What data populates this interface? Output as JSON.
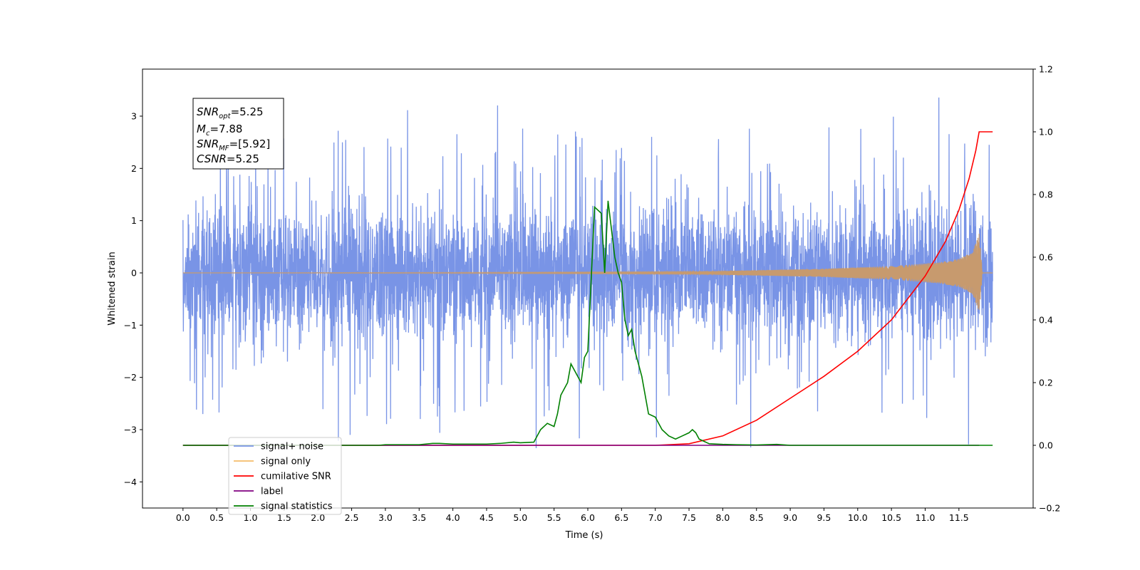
{
  "chart_data": {
    "type": "line",
    "xlabel": "Time (s)",
    "ylabel": "Whitened strain",
    "xlim": [
      -0.6,
      12.6
    ],
    "ylim": [
      -4.5,
      3.9
    ],
    "y2lim": [
      -0.2,
      1.2
    ],
    "x_ticks": [
      "0.0",
      "0.5",
      "1.0",
      "1.5",
      "2.0",
      "2.5",
      "3.0",
      "3.5",
      "4.0",
      "4.5",
      "5.0",
      "5.5",
      "6.0",
      "6.5",
      "7.0",
      "7.5",
      "8.0",
      "8.5",
      "9.0",
      "9.5",
      "10.0",
      "10.5",
      "11.0",
      "11.5"
    ],
    "y_ticks": [
      "−4",
      "−3",
      "−2",
      "−1",
      "0",
      "1",
      "2",
      "3"
    ],
    "y2_ticks": [
      "−0.2",
      "0.0",
      "0.2",
      "0.4",
      "0.6",
      "0.8",
      "1.0",
      "1.2"
    ],
    "legend_position": "lower-left",
    "annotation": {
      "snr_opt": "5.25",
      "m_c": "7.88",
      "snr_mf": "[5.92]",
      "csnr": "5.25"
    },
    "series": [
      {
        "name": "signal+ noise",
        "color": "#7994e6",
        "axis": "left",
        "x_range": [
          0.0,
          12.0
        ],
        "envelope_typical": 1.3,
        "envelope_peak": 3.55
      },
      {
        "name": "signal only",
        "color": "#f5bb6a",
        "axis": "left",
        "x_range": [
          0.0,
          12.0
        ],
        "amplitude": [
          [
            0.0,
            0.0
          ],
          [
            7.5,
            0.02
          ],
          [
            8.5,
            0.05
          ],
          [
            9.5,
            0.08
          ],
          [
            10.5,
            0.13
          ],
          [
            11.2,
            0.2
          ],
          [
            11.5,
            0.27
          ],
          [
            11.7,
            0.4
          ],
          [
            11.8,
            0.75
          ],
          [
            11.85,
            0.0
          ],
          [
            12.0,
            0.0
          ]
        ]
      },
      {
        "name": "cumilative SNR",
        "color": "#ff0000",
        "axis": "right",
        "x": [
          0.0,
          7.0,
          7.5,
          8.0,
          8.5,
          9.0,
          9.5,
          10.0,
          10.5,
          11.0,
          11.3,
          11.5,
          11.65,
          11.75,
          11.8,
          11.85,
          12.0
        ],
        "y": [
          0.0,
          0.0,
          0.005,
          0.03,
          0.08,
          0.15,
          0.22,
          0.3,
          0.4,
          0.54,
          0.65,
          0.75,
          0.85,
          0.94,
          1.0,
          1.0,
          1.0
        ]
      },
      {
        "name": "label",
        "color": "#800080",
        "axis": "right",
        "x": [
          0.0,
          11.8
        ],
        "y": [
          0.0,
          0.0
        ]
      },
      {
        "name": "signal statistics",
        "color": "#008000",
        "axis": "right",
        "x": [
          0.0,
          2.9,
          3.0,
          3.5,
          3.7,
          3.8,
          4.0,
          4.5,
          4.7,
          4.9,
          5.0,
          5.2,
          5.3,
          5.4,
          5.5,
          5.55,
          5.6,
          5.7,
          5.75,
          5.8,
          5.9,
          5.95,
          6.0,
          6.1,
          6.2,
          6.25,
          6.3,
          6.4,
          6.45,
          6.5,
          6.55,
          6.6,
          6.65,
          6.7,
          6.8,
          6.9,
          7.0,
          7.1,
          7.2,
          7.3,
          7.4,
          7.5,
          7.55,
          7.6,
          7.65,
          7.8,
          8.0,
          8.2,
          8.5,
          8.8,
          9.0,
          11.0,
          12.0
        ],
        "y": [
          0.0,
          0.0,
          0.002,
          0.002,
          0.006,
          0.006,
          0.004,
          0.004,
          0.006,
          0.01,
          0.008,
          0.01,
          0.05,
          0.07,
          0.06,
          0.1,
          0.16,
          0.2,
          0.26,
          0.24,
          0.2,
          0.28,
          0.3,
          0.76,
          0.74,
          0.55,
          0.78,
          0.6,
          0.55,
          0.52,
          0.4,
          0.35,
          0.37,
          0.3,
          0.22,
          0.1,
          0.09,
          0.05,
          0.03,
          0.02,
          0.03,
          0.04,
          0.05,
          0.04,
          0.02,
          0.005,
          0.003,
          0.002,
          0.001,
          0.003,
          0.0,
          0.0,
          0.0
        ]
      }
    ]
  }
}
